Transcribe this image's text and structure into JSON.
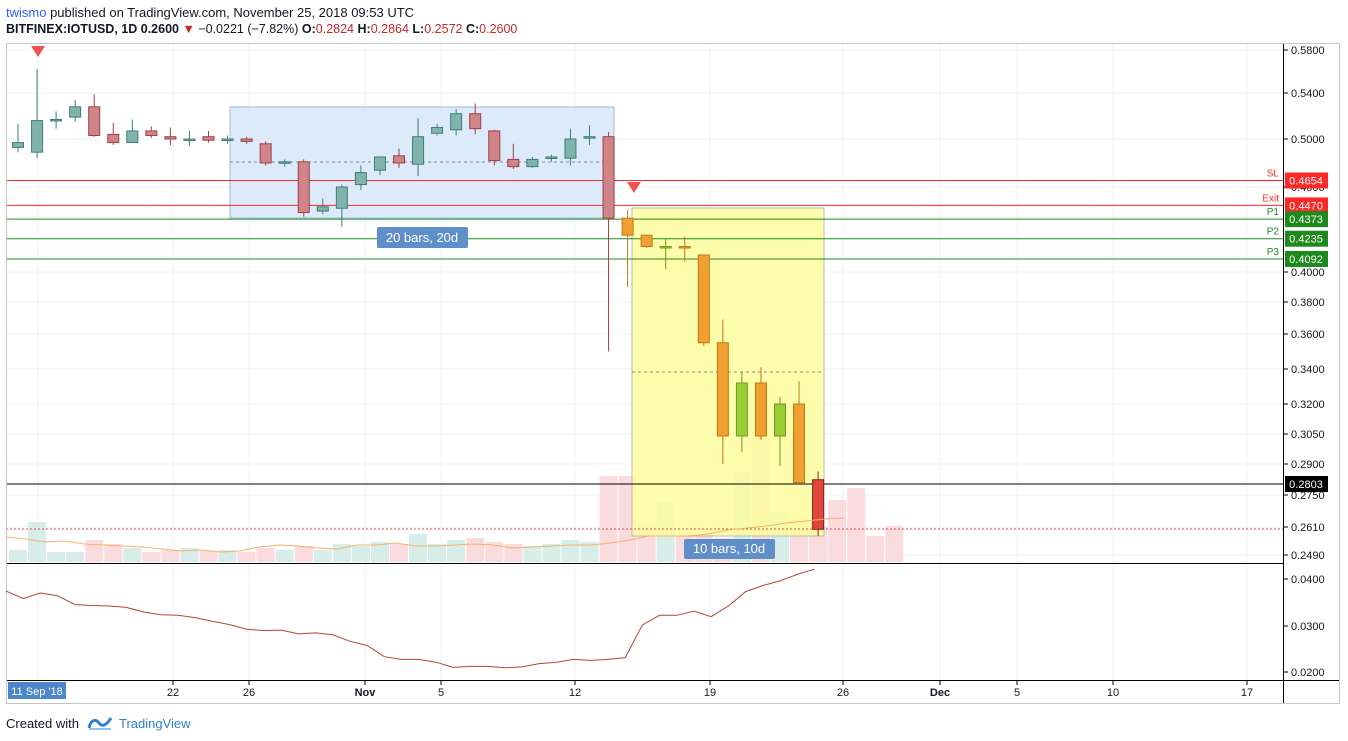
{
  "header": {
    "author": "twismo",
    "published_text": "published on TradingView.com, November 25, 2018 09:53 UTC",
    "symbol": "BITFINEX:IOTUSD, 1D",
    "last_price": "0.2600",
    "change": "−0.0221 (−7.82%)",
    "o_label": "O:",
    "o_value": "0.2824",
    "h_label": "H:",
    "h_value": "0.2864",
    "l_label": "L:",
    "l_value": "0.2572",
    "c_label": "C:",
    "c_value": "0.2600"
  },
  "footer": {
    "created_with": "Created with",
    "brand": "TradingView"
  },
  "colors": {
    "up": "#7fb3ac",
    "down": "#d08488",
    "range_box": "#dceaf9",
    "projection_box": "#fdfd9e",
    "projection_up": "#9acd32",
    "projection_down": "#f0a030",
    "stop_line": "#ff2828",
    "target_line": "#1e8a1e"
  },
  "chart_data": {
    "type": "candlestick",
    "price_axis": {
      "ticks": [
        "0.5800",
        "0.5400",
        "0.5000",
        "0.4600",
        "0.4000",
        "0.3800",
        "0.3600",
        "0.3400",
        "0.3200",
        "0.3050",
        "0.2900",
        "0.2750",
        "0.2610",
        "0.2490"
      ]
    },
    "indicator_axis": {
      "ticks": [
        "0.0400",
        "0.0300",
        "0.0200"
      ]
    },
    "time_axis": {
      "labels": [
        "11 Sep '18",
        "22",
        "26",
        "Nov",
        "5",
        "12",
        "19",
        "26",
        "Dec",
        "5",
        "10",
        "17"
      ]
    },
    "candles": [
      {
        "o": 0.493,
        "h": 0.513,
        "l": 0.489,
        "c": 0.497
      },
      {
        "o": 0.489,
        "h": 0.562,
        "l": 0.484,
        "c": 0.516
      },
      {
        "o": 0.516,
        "h": 0.524,
        "l": 0.509,
        "c": 0.517
      },
      {
        "o": 0.519,
        "h": 0.534,
        "l": 0.515,
        "c": 0.528
      },
      {
        "o": 0.528,
        "h": 0.539,
        "l": 0.502,
        "c": 0.503
      },
      {
        "o": 0.504,
        "h": 0.514,
        "l": 0.495,
        "c": 0.497
      },
      {
        "o": 0.497,
        "h": 0.517,
        "l": 0.497,
        "c": 0.507
      },
      {
        "o": 0.507,
        "h": 0.511,
        "l": 0.501,
        "c": 0.503
      },
      {
        "o": 0.502,
        "h": 0.51,
        "l": 0.495,
        "c": 0.5
      },
      {
        "o": 0.499,
        "h": 0.507,
        "l": 0.494,
        "c": 0.5
      },
      {
        "o": 0.502,
        "h": 0.507,
        "l": 0.497,
        "c": 0.499
      },
      {
        "o": 0.499,
        "h": 0.503,
        "l": 0.496,
        "c": 0.5
      },
      {
        "o": 0.5,
        "h": 0.502,
        "l": 0.496,
        "c": 0.498
      },
      {
        "o": 0.496,
        "h": 0.498,
        "l": 0.478,
        "c": 0.48
      },
      {
        "o": 0.48,
        "h": 0.483,
        "l": 0.477,
        "c": 0.481
      },
      {
        "o": 0.481,
        "h": 0.483,
        "l": 0.439,
        "c": 0.442
      },
      {
        "o": 0.443,
        "h": 0.452,
        "l": 0.441,
        "c": 0.446
      },
      {
        "o": 0.445,
        "h": 0.462,
        "l": 0.432,
        "c": 0.46
      },
      {
        "o": 0.462,
        "h": 0.478,
        "l": 0.458,
        "c": 0.472
      },
      {
        "o": 0.474,
        "h": 0.485,
        "l": 0.47,
        "c": 0.485
      },
      {
        "o": 0.486,
        "h": 0.492,
        "l": 0.476,
        "c": 0.48
      },
      {
        "o": 0.479,
        "h": 0.518,
        "l": 0.469,
        "c": 0.502
      },
      {
        "o": 0.505,
        "h": 0.513,
        "l": 0.503,
        "c": 0.51
      },
      {
        "o": 0.508,
        "h": 0.526,
        "l": 0.503,
        "c": 0.522
      },
      {
        "o": 0.522,
        "h": 0.531,
        "l": 0.504,
        "c": 0.509
      },
      {
        "o": 0.507,
        "h": 0.508,
        "l": 0.478,
        "c": 0.482
      },
      {
        "o": 0.483,
        "h": 0.496,
        "l": 0.475,
        "c": 0.477
      },
      {
        "o": 0.477,
        "h": 0.485,
        "l": 0.476,
        "c": 0.483
      },
      {
        "o": 0.485,
        "h": 0.487,
        "l": 0.481,
        "c": 0.485
      },
      {
        "o": 0.484,
        "h": 0.509,
        "l": 0.478,
        "c": 0.5
      },
      {
        "o": 0.501,
        "h": 0.512,
        "l": 0.495,
        "c": 0.502
      },
      {
        "o": 0.502,
        "h": 0.506,
        "l": 0.35,
        "c": 0.438
      }
    ],
    "projected_candles": [
      {
        "o": 0.438,
        "h": 0.444,
        "l": 0.39,
        "c": 0.426
      },
      {
        "o": 0.426,
        "h": 0.426,
        "l": 0.417,
        "c": 0.418
      },
      {
        "o": 0.417,
        "h": 0.424,
        "l": 0.402,
        "c": 0.418
      },
      {
        "o": 0.418,
        "h": 0.425,
        "l": 0.407,
        "c": 0.417
      },
      {
        "o": 0.412,
        "h": 0.412,
        "l": 0.353,
        "c": 0.355
      },
      {
        "o": 0.355,
        "h": 0.369,
        "l": 0.29,
        "c": 0.304
      },
      {
        "o": 0.304,
        "h": 0.338,
        "l": 0.296,
        "c": 0.332
      },
      {
        "o": 0.332,
        "h": 0.341,
        "l": 0.302,
        "c": 0.304
      },
      {
        "o": 0.304,
        "h": 0.324,
        "l": 0.289,
        "c": 0.32
      },
      {
        "o": 0.32,
        "h": 0.333,
        "l": 0.281,
        "c": 0.281
      }
    ],
    "last_candle": {
      "o": 0.2824,
      "h": 0.2864,
      "l": 0.2572,
      "c": 0.26
    },
    "volume_heights": [
      12,
      40,
      10,
      10,
      22,
      18,
      14,
      10,
      12,
      14,
      11,
      12,
      10,
      14,
      12,
      16,
      12,
      18,
      16,
      20,
      18,
      28,
      18,
      22,
      24,
      20,
      18,
      16,
      18,
      22,
      20,
      86,
      86,
      38,
      60,
      30,
      28,
      24,
      90,
      130,
      50,
      42,
      36,
      62,
      74,
      26,
      36
    ],
    "indicator_values": [
      0.0374,
      0.0358,
      0.037,
      0.0364,
      0.0345,
      0.0343,
      0.0342,
      0.0339,
      0.0329,
      0.0323,
      0.0322,
      0.0317,
      0.0309,
      0.0302,
      0.0292,
      0.0289,
      0.029,
      0.0282,
      0.0284,
      0.028,
      0.0266,
      0.0257,
      0.0233,
      0.0227,
      0.0227,
      0.0221,
      0.021,
      0.0212,
      0.0212,
      0.0209,
      0.0211,
      0.0218,
      0.0221,
      0.0227,
      0.0225,
      0.0227,
      0.0231,
      0.0301,
      0.0322,
      0.0322,
      0.0331,
      0.0319,
      0.0342,
      0.0373,
      0.0386,
      0.0396,
      0.041,
      0.0421
    ],
    "levels": [
      {
        "label": "SL",
        "value": "0.4654",
        "price": 0.4654,
        "kind": "stop"
      },
      {
        "label": "Exit",
        "value": "0.4470",
        "price": 0.447,
        "kind": "stop"
      },
      {
        "label": "P1",
        "value": "0.4373",
        "price": 0.4373,
        "kind": "target"
      },
      {
        "label": "P2",
        "value": "0.4235",
        "price": 0.4235,
        "kind": "target"
      },
      {
        "label": "P3",
        "value": "0.4092",
        "price": 0.4092,
        "kind": "target"
      }
    ],
    "current_price_label": "0.2803",
    "range_label_1": "20 bars, 20d",
    "range_label_2": "10 bars, 10d"
  }
}
